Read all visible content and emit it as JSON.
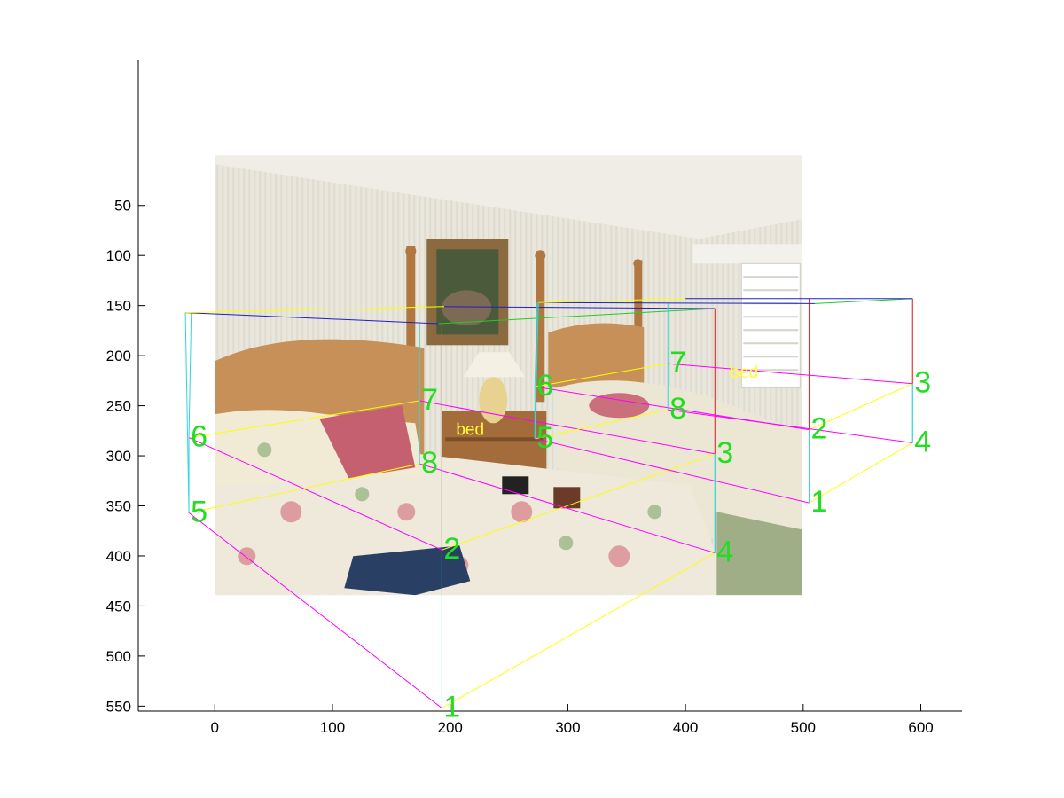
{
  "chart_data": {
    "type": "scatter",
    "title": "",
    "xlabel": "",
    "ylabel": "",
    "xlim": [
      -65,
      635
    ],
    "ylim": [
      555,
      -95
    ],
    "y_reversed": true,
    "grid": false,
    "background_image": {
      "description": "bedroom photograph with two beds",
      "x_extent": [
        0,
        500
      ],
      "y_extent": [
        0,
        375
      ]
    },
    "x_ticks": [
      0,
      100,
      200,
      300,
      400,
      500,
      600
    ],
    "y_ticks": [
      50,
      100,
      150,
      200,
      250,
      300,
      350,
      400,
      450,
      500,
      550
    ],
    "edge_colors": {
      "top": "#2020c0",
      "top_side": "#22cc22",
      "top_front": "#ffff00",
      "vertical": "#33d6d6",
      "vertical_back": "#ff2020",
      "side": "#ff00ff",
      "bottom": "#ffff00"
    },
    "label_color": "#22dd22",
    "object_label_color": "#ffff33",
    "boxes": [
      {
        "label": "bed",
        "label_pos": [
          205,
          279
        ],
        "corners": [
          {
            "id": "1",
            "x": 193,
            "y": 552
          },
          {
            "id": "2",
            "x": 193,
            "y": 394
          },
          {
            "id": "3",
            "x": 425,
            "y": 298
          },
          {
            "id": "4",
            "x": 425,
            "y": 397
          },
          {
            "id": "5",
            "x": -22,
            "y": 357
          },
          {
            "id": "6",
            "x": -22,
            "y": 282
          },
          {
            "id": "7",
            "x": 174,
            "y": 245
          },
          {
            "id": "8",
            "x": 174,
            "y": 308
          }
        ],
        "top_corners": [
          {
            "x": -25,
            "y": 157
          },
          {
            "x": 190,
            "y": 168
          },
          {
            "x": 425,
            "y": 153
          },
          {
            "x": 195,
            "y": 151
          }
        ]
      },
      {
        "label": "bed",
        "label_pos": [
          438,
          222
        ],
        "corners": [
          {
            "id": "1",
            "x": 505,
            "y": 347
          },
          {
            "id": "2",
            "x": 505,
            "y": 274
          },
          {
            "id": "3",
            "x": 593,
            "y": 228
          },
          {
            "id": "4",
            "x": 593,
            "y": 287
          },
          {
            "id": "5",
            "x": 272,
            "y": 283
          },
          {
            "id": "6",
            "x": 272,
            "y": 231
          },
          {
            "id": "7",
            "x": 385,
            "y": 208
          },
          {
            "id": "8",
            "x": 385,
            "y": 254
          }
        ],
        "top_corners": [
          {
            "x": 275,
            "y": 147
          },
          {
            "x": 510,
            "y": 148
          },
          {
            "x": 593,
            "y": 143
          },
          {
            "x": 400,
            "y": 143
          }
        ]
      }
    ]
  }
}
